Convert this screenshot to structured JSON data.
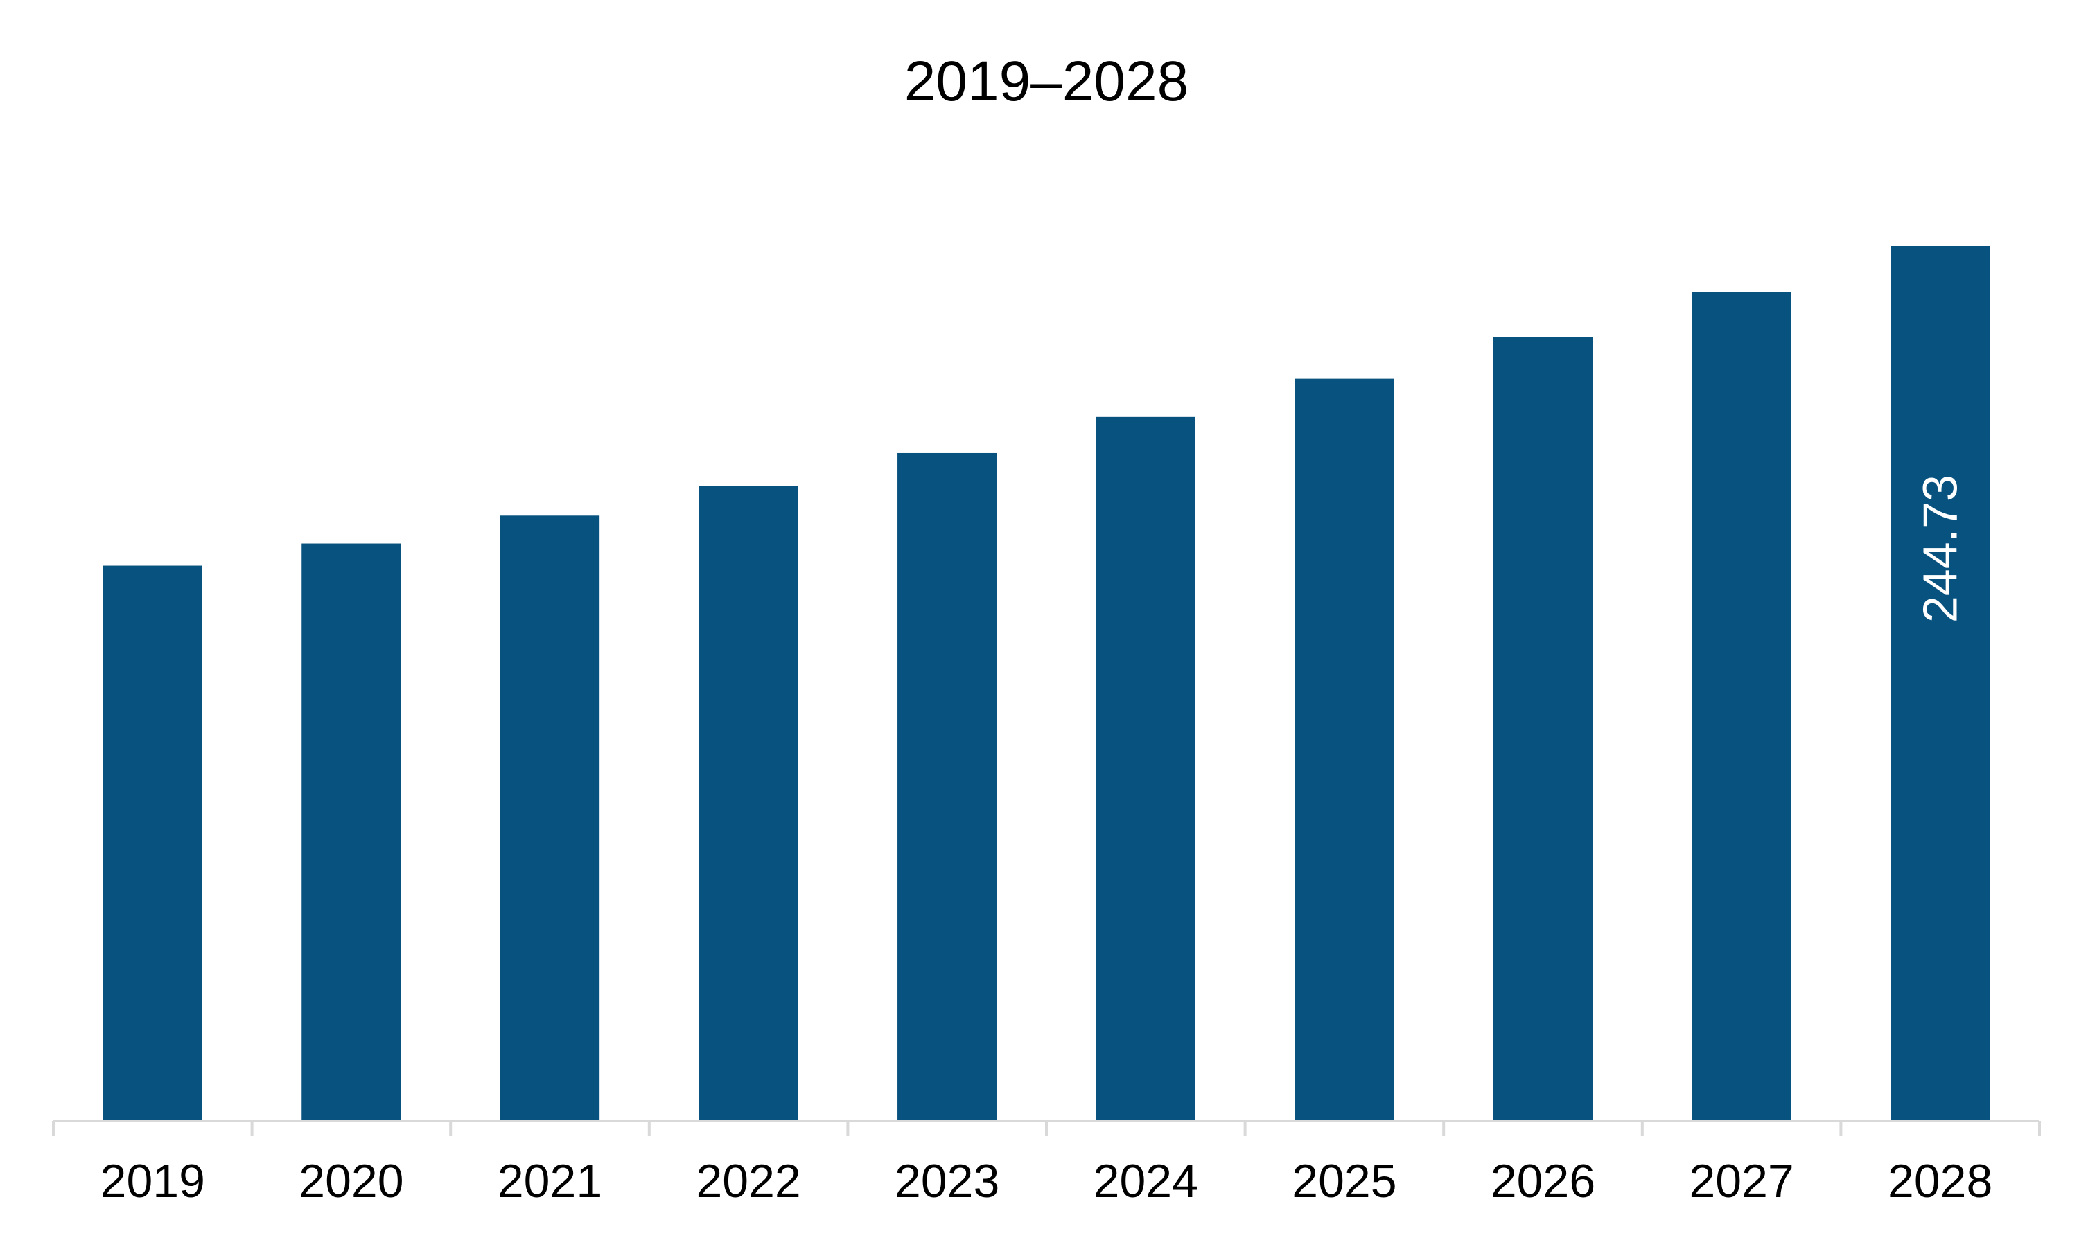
{
  "chart_data": {
    "type": "bar",
    "title": "2019–2028",
    "xlabel": "",
    "ylabel": "",
    "categories": [
      "2019",
      "2020",
      "2021",
      "2022",
      "2023",
      "2024",
      "2025",
      "2026",
      "2027",
      "2028"
    ],
    "series": [
      {
        "values": [
          155.3,
          161.5,
          169.3,
          177.6,
          186.8,
          196.9,
          207.6,
          219.2,
          231.8,
          244.73
        ],
        "labels": [
          "",
          "",
          "",
          "",
          "",
          "",
          "",
          "",
          "",
          "244.73"
        ]
      }
    ],
    "ylim": [
      0,
      260
    ],
    "grid": false,
    "legend": "none",
    "colors": {
      "bar": "#08527f",
      "axis": "#d9d9d9",
      "label": "#ffffff"
    }
  }
}
